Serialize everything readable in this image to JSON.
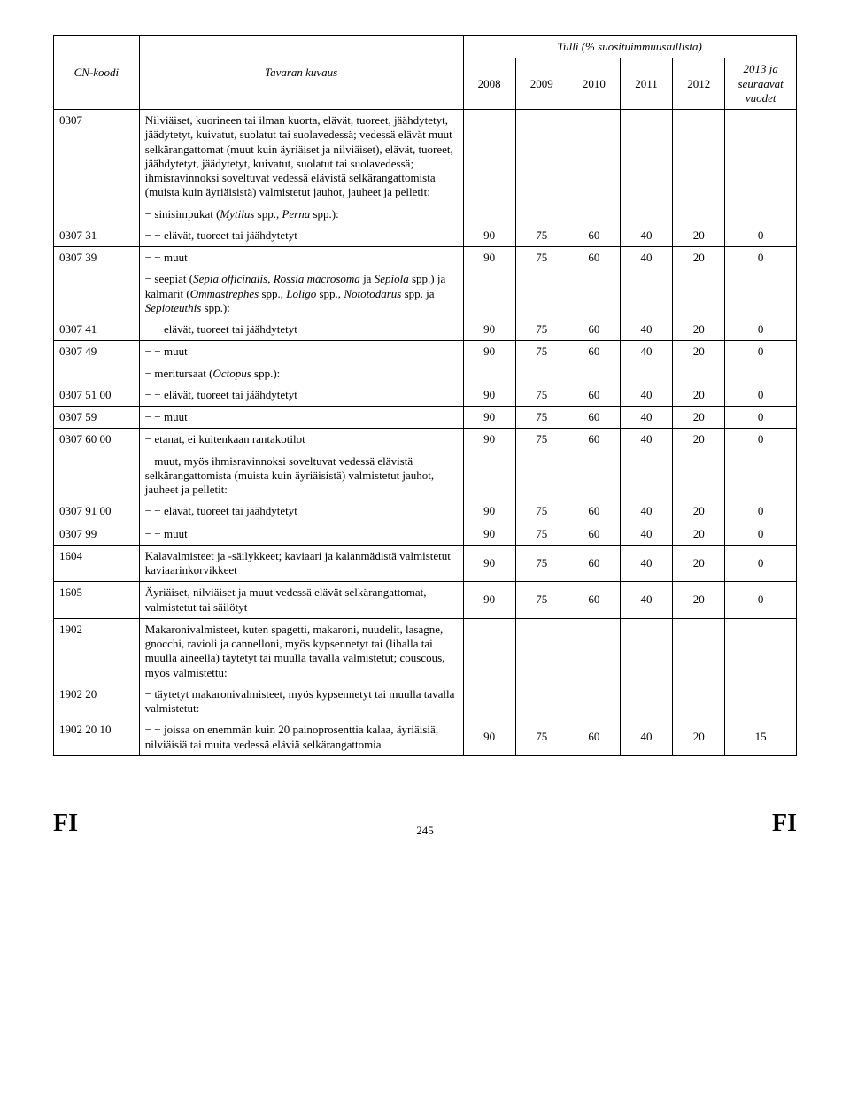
{
  "header": {
    "top_title": "Tulli (% suosituimmuustullista)",
    "col_code": "CN-koodi",
    "col_desc": "Tavaran kuvaus",
    "years": [
      "2008",
      "2009",
      "2010",
      "2011",
      "2012"
    ],
    "col_last": "2013 ja seuraavat vuodet"
  },
  "rows": [
    {
      "code": "0307",
      "desc": "Nilviäiset, kuorineen tai ilman kuorta, elävät, tuoreet, jäähdytetyt, jäädytetyt, kuivatut, suolatut tai suolavedessä; vedessä elävät muut selkärangattomat (muut kuin äyriäiset ja nilviäiset), elävät, tuoreet, jäähdytetyt, jäädytetyt, kuivatut, suolatut tai suolavedessä; ihmisravinnoksi soveltuvat vedessä elävistä selkärangattomista (muista kuin äyriäisistä) valmistetut jauhot, jauheet ja pelletit:",
      "v": [
        "",
        "",
        "",
        "",
        "",
        ""
      ],
      "cont": true
    },
    {
      "code": "",
      "desc_pre": "− sinisimpukat (",
      "desc_it": "Mytilus",
      "desc_mid": " spp., ",
      "desc_it2": "Perna",
      "desc_post": " spp.):",
      "v": [
        "",
        "",
        "",
        "",
        "",
        ""
      ],
      "sub": true
    },
    {
      "code": "0307 31",
      "desc": "− − elävät, tuoreet tai jäähdytetyt",
      "v": [
        "90",
        "75",
        "60",
        "40",
        "20",
        "0"
      ]
    },
    {
      "code": "0307 39",
      "desc": "− − muut",
      "v": [
        "90",
        "75",
        "60",
        "40",
        "20",
        "0"
      ]
    },
    {
      "code": "",
      "desc_pre": "− seepiat (",
      "desc_it": "Sepia officinalis, Rossia macrosoma",
      "desc_mid": " ja ",
      "desc_it2": "Sepiola",
      "desc_post_pre": " spp.) ja kalmarit (",
      "desc_it3": "Ommastrephes",
      "desc_post_mid": " spp., ",
      "desc_it4": "Loligo",
      "desc_post_mid2": " spp., ",
      "desc_it5": "Nototodarus",
      "desc_post_mid3": " spp. ja ",
      "desc_it6": "Sepioteuthis",
      "desc_post": " spp.):",
      "v": [
        "",
        "",
        "",
        "",
        "",
        ""
      ],
      "sub": true
    },
    {
      "code": "0307 41",
      "desc": "− − elävät, tuoreet tai jäähdytetyt",
      "v": [
        "90",
        "75",
        "60",
        "40",
        "20",
        "0"
      ]
    },
    {
      "code": "0307 49",
      "desc": "− − muut",
      "v": [
        "90",
        "75",
        "60",
        "40",
        "20",
        "0"
      ]
    },
    {
      "code": "",
      "desc_pre": "− meritursaat (",
      "desc_it": "Octopus",
      "desc_post": " spp.):",
      "v": [
        "",
        "",
        "",
        "",
        "",
        ""
      ],
      "sub": true
    },
    {
      "code": "0307 51 00",
      "desc": "− − elävät, tuoreet tai jäähdytetyt",
      "v": [
        "90",
        "75",
        "60",
        "40",
        "20",
        "0"
      ]
    },
    {
      "code": "0307 59",
      "desc": "− − muut",
      "v": [
        "90",
        "75",
        "60",
        "40",
        "20",
        "0"
      ]
    },
    {
      "code": "0307 60 00",
      "desc": "− etanat, ei kuitenkaan rantakotilot",
      "v": [
        "90",
        "75",
        "60",
        "40",
        "20",
        "0"
      ]
    },
    {
      "code": "",
      "desc": "− muut, myös ihmisravinnoksi soveltuvat vedessä elävistä selkärangattomista (muista kuin äyriäisistä) valmistetut jauhot, jauheet ja pelletit:",
      "v": [
        "",
        "",
        "",
        "",
        "",
        ""
      ],
      "sub": true
    },
    {
      "code": "0307 91 00",
      "desc": "− − elävät, tuoreet tai jäähdytetyt",
      "v": [
        "90",
        "75",
        "60",
        "40",
        "20",
        "0"
      ]
    },
    {
      "code": "0307 99",
      "desc": "− − muut",
      "v": [
        "90",
        "75",
        "60",
        "40",
        "20",
        "0"
      ]
    },
    {
      "code": "1604",
      "desc": "Kalavalmisteet ja -säilykkeet; kaviaari ja kalanmädistä valmistetut kaviaarinkorvikkeet",
      "v": [
        "90",
        "75",
        "60",
        "40",
        "20",
        "0"
      ]
    },
    {
      "code": "1605",
      "desc": "Äyriäiset, nilviäiset ja muut vedessä elävät selkärangattomat, valmistetut tai säilötyt",
      "v": [
        "90",
        "75",
        "60",
        "40",
        "20",
        "0"
      ]
    },
    {
      "code": "1902",
      "desc": "Makaronivalmisteet, kuten spagetti, makaroni, nuudelit, lasagne, gnocchi, ravioli ja cannelloni, myös kypsennetyt tai (lihalla tai muulla aineella) täytetyt tai muulla tavalla valmistetut; couscous, myös valmistettu:",
      "v": [
        "",
        "",
        "",
        "",
        "",
        ""
      ],
      "cont": true
    },
    {
      "code": "1902 20",
      "desc": "− täytetyt makaronivalmisteet, myös kypsennetyt tai muulla tavalla valmistetut:",
      "v": [
        "",
        "",
        "",
        "",
        "",
        ""
      ],
      "cont": true
    },
    {
      "code": "1902 20 10",
      "desc": "− − joissa on enemmän kuin 20 painoprosenttia kalaa, äyriäisiä, nilviäisiä tai muita vedessä eläviä selkärangattomia",
      "v": [
        "90",
        "75",
        "60",
        "40",
        "20",
        "15"
      ]
    }
  ],
  "footer": {
    "left": "FI",
    "page": "245",
    "right": "FI"
  }
}
